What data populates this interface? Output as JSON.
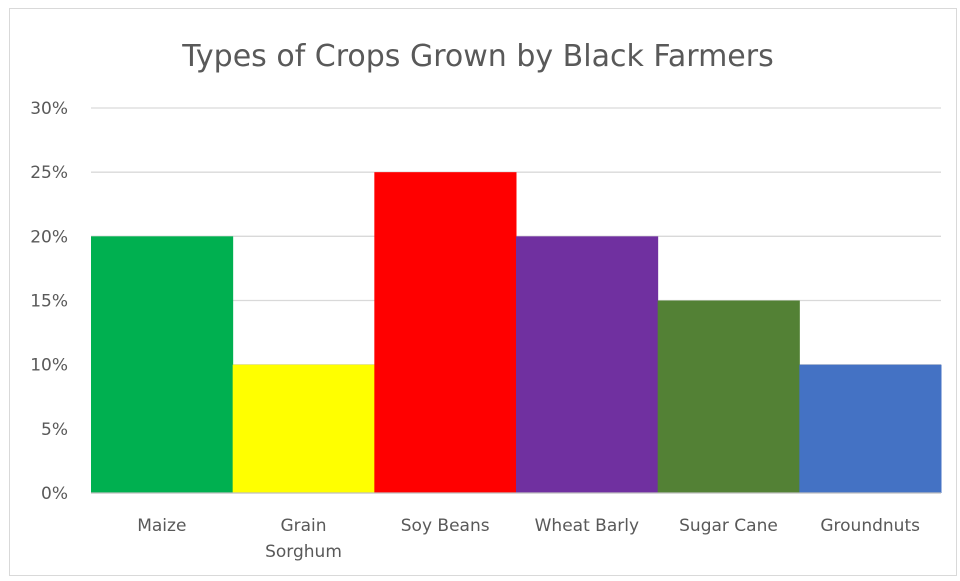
{
  "chart_data": {
    "type": "bar",
    "title": "Types of Crops Grown by Black Farmers",
    "xlabel": "",
    "ylabel": "",
    "categories": [
      "Maize",
      "Grain Sorghum",
      "Soy Beans",
      "Wheat Barly",
      "Sugar Cane",
      "Groundnuts"
    ],
    "category_lines": [
      [
        "Maize"
      ],
      [
        "Grain",
        "Sorghum"
      ],
      [
        "Soy Beans"
      ],
      [
        "Wheat Barly"
      ],
      [
        "Sugar Cane"
      ],
      [
        "Groundnuts"
      ]
    ],
    "values": [
      20,
      10,
      25,
      20,
      15,
      10
    ],
    "value_format": "percent",
    "ylim": [
      0,
      30
    ],
    "yticks": [
      "0%",
      "5%",
      "10%",
      "15%",
      "20%",
      "25%",
      "30%"
    ],
    "ytick_values": [
      0,
      5,
      10,
      15,
      20,
      25,
      30
    ],
    "bar_colors": [
      "#00b050",
      "#ffff00",
      "#ff0000",
      "#7030a0",
      "#538135",
      "#4472c4"
    ],
    "grid": true,
    "grid_color": "#d9d9d9",
    "axis_color": "#bfbfbf",
    "legend": "none"
  }
}
